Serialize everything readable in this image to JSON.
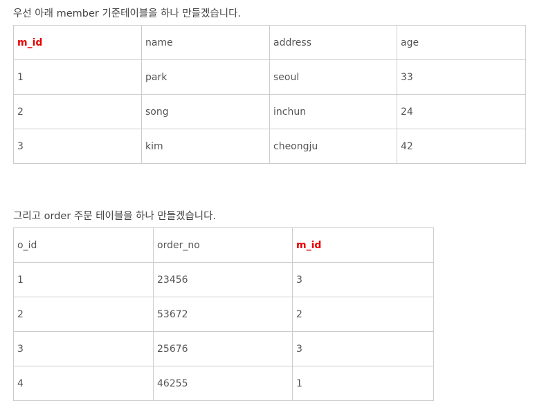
{
  "intro1": "우선 아래 member 기준테이블을 하나 만들겠습니다.",
  "intro2": "그리고 order 주문 테이블을 하나 만들겠습니다.",
  "accent_color": "#e60000",
  "member_table": {
    "headers": [
      "m_id",
      "name",
      "address",
      "age"
    ],
    "rows": [
      [
        "1",
        "park",
        "seoul",
        "33"
      ],
      [
        "2",
        "song",
        "inchun",
        "24"
      ],
      [
        "3",
        "kim",
        "cheongju",
        "42"
      ]
    ]
  },
  "order_table": {
    "headers": [
      "o_id",
      "order_no",
      "m_id"
    ],
    "rows": [
      [
        "1",
        "23456",
        "3"
      ],
      [
        "2",
        "53672",
        "2"
      ],
      [
        "3",
        "25676",
        "3"
      ],
      [
        "4",
        "46255",
        "1"
      ]
    ]
  }
}
